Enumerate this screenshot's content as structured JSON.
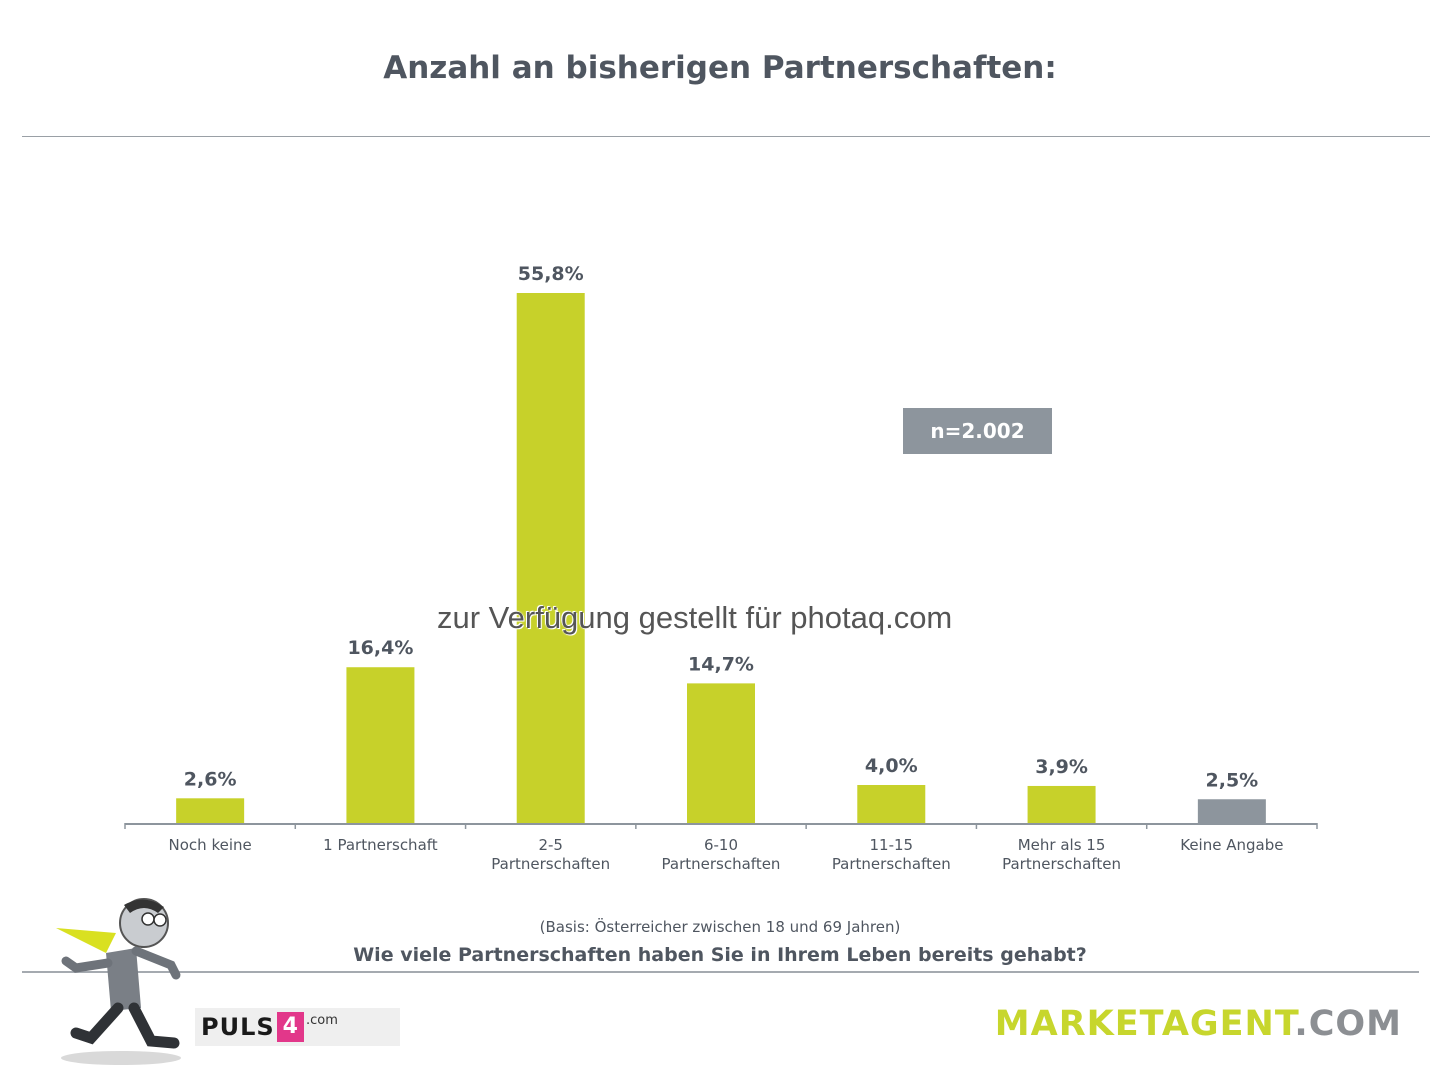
{
  "chart_data": {
    "type": "bar",
    "title": "Anzahl an bisherigen Partnerschaften:",
    "categories": [
      [
        "Noch keine"
      ],
      [
        "1 Partnerschaft"
      ],
      [
        "2-5",
        "Partnerschaften"
      ],
      [
        "6-10",
        "Partnerschaften"
      ],
      [
        "11-15",
        "Partnerschaften"
      ],
      [
        "Mehr als 15",
        "Partnerschaften"
      ],
      [
        "Keine Angabe"
      ]
    ],
    "values": [
      2.6,
      16.4,
      55.8,
      14.7,
      4.0,
      3.9,
      2.5
    ],
    "value_labels": [
      "2,6%",
      "16,4%",
      "55,8%",
      "14,7%",
      "4,0%",
      "3,9%",
      "2,5%"
    ],
    "colors": [
      "#c7d12a",
      "#c7d12a",
      "#c7d12a",
      "#c7d12a",
      "#c7d12a",
      "#c7d12a",
      "#8d959d"
    ],
    "ylim": [
      0,
      55.8
    ],
    "grid": false,
    "legend": "none",
    "sample_size": "n=2.002"
  },
  "footer": {
    "basis": "(Basis: Österreicher zwischen 18 und 69 Jahren)",
    "question": "Wie viele Partnerschaften haben Sie in Ihrem Leben bereits gehabt?"
  },
  "watermark": "zur Verfügung gestellt für photaq.com",
  "logos": {
    "puls4_word": "PULS",
    "puls4_four": "4",
    "puls4_dotcom": ".com",
    "marketagent_main": "MARKETAGENT",
    "marketagent_suffix": ".COM"
  }
}
